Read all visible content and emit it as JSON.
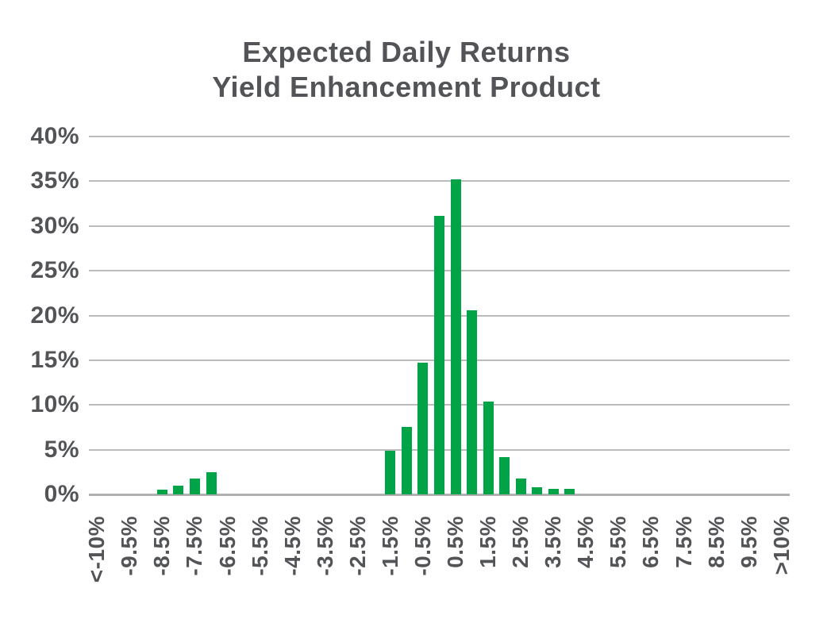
{
  "chart_data": {
    "type": "bar",
    "title_lines": [
      "Expected Daily Returns",
      "Yield Enhancement Product"
    ],
    "title_color": "#535457",
    "bar_color": "#00a345",
    "gridline_color": "#bcbcbc",
    "axis_line_color": "#b0b0b0",
    "axis_text_color": "#535457",
    "background_color": "#ffffff",
    "grid": true,
    "legend": false,
    "y_axis": {
      "min": 0,
      "max": 40,
      "step": 5,
      "unit": "percent",
      "tick_labels": [
        "0%",
        "5%",
        "10%",
        "15%",
        "20%",
        "25%",
        "30%",
        "35%",
        "40%"
      ]
    },
    "x_axis": {
      "bucket_width_pct": 0.5,
      "visible_tick_labels": [
        "<-10%",
        "-9.5%",
        "-8.5%",
        "-7.5%",
        "-6.5%",
        "-5.5%",
        "-4.5%",
        "-3.5%",
        "-2.5%",
        "-1.5%",
        "-0.5%",
        "0.5%",
        "1.5%",
        "2.5%",
        "3.5%",
        "4.5%",
        "5.5%",
        "6.5%",
        "7.5%",
        "8.5%",
        "9.5%",
        ">10%"
      ]
    },
    "buckets": [
      {
        "label": "<-10%",
        "show_label": true,
        "value": 0
      },
      {
        "label": "-10%",
        "show_label": false,
        "value": 0
      },
      {
        "label": "-9.5%",
        "show_label": true,
        "value": 0
      },
      {
        "label": "-9%",
        "show_label": false,
        "value": 0
      },
      {
        "label": "-8.5%",
        "show_label": true,
        "value": 0.5
      },
      {
        "label": "-8%",
        "show_label": false,
        "value": 1.0
      },
      {
        "label": "-7.5%",
        "show_label": true,
        "value": 1.8
      },
      {
        "label": "-7%",
        "show_label": false,
        "value": 2.5
      },
      {
        "label": "-6.5%",
        "show_label": true,
        "value": 0
      },
      {
        "label": "-6%",
        "show_label": false,
        "value": 0
      },
      {
        "label": "-5.5%",
        "show_label": true,
        "value": 0
      },
      {
        "label": "-5%",
        "show_label": false,
        "value": 0
      },
      {
        "label": "-4.5%",
        "show_label": true,
        "value": 0
      },
      {
        "label": "-4%",
        "show_label": false,
        "value": 0
      },
      {
        "label": "-3.5%",
        "show_label": true,
        "value": 0
      },
      {
        "label": "-3%",
        "show_label": false,
        "value": 0
      },
      {
        "label": "-2.5%",
        "show_label": true,
        "value": 0
      },
      {
        "label": "-2%",
        "show_label": false,
        "value": 0
      },
      {
        "label": "-1.5%",
        "show_label": true,
        "value": 4.9
      },
      {
        "label": "-1%",
        "show_label": false,
        "value": 7.5
      },
      {
        "label": "-0.5%",
        "show_label": true,
        "value": 14.7
      },
      {
        "label": "0%",
        "show_label": false,
        "value": 31.1
      },
      {
        "label": "0.5%",
        "show_label": true,
        "value": 35.2
      },
      {
        "label": "1%",
        "show_label": false,
        "value": 20.6
      },
      {
        "label": "1.5%",
        "show_label": true,
        "value": 10.4
      },
      {
        "label": "2%",
        "show_label": false,
        "value": 4.2
      },
      {
        "label": "2.5%",
        "show_label": true,
        "value": 1.8
      },
      {
        "label": "3%",
        "show_label": false,
        "value": 0.8
      },
      {
        "label": "3.5%",
        "show_label": true,
        "value": 0.6
      },
      {
        "label": "4%",
        "show_label": false,
        "value": 0.6
      },
      {
        "label": "4.5%",
        "show_label": true,
        "value": 0
      },
      {
        "label": "5%",
        "show_label": false,
        "value": 0
      },
      {
        "label": "5.5%",
        "show_label": true,
        "value": 0
      },
      {
        "label": "6%",
        "show_label": false,
        "value": 0
      },
      {
        "label": "6.5%",
        "show_label": true,
        "value": 0
      },
      {
        "label": "7%",
        "show_label": false,
        "value": 0
      },
      {
        "label": "7.5%",
        "show_label": true,
        "value": 0
      },
      {
        "label": "8%",
        "show_label": false,
        "value": 0
      },
      {
        "label": "8.5%",
        "show_label": true,
        "value": 0
      },
      {
        "label": "9%",
        "show_label": false,
        "value": 0
      },
      {
        "label": "9.5%",
        "show_label": true,
        "value": 0
      },
      {
        "label": "10%",
        "show_label": false,
        "value": 0
      },
      {
        "label": ">10%",
        "show_label": true,
        "value": 0
      }
    ]
  }
}
